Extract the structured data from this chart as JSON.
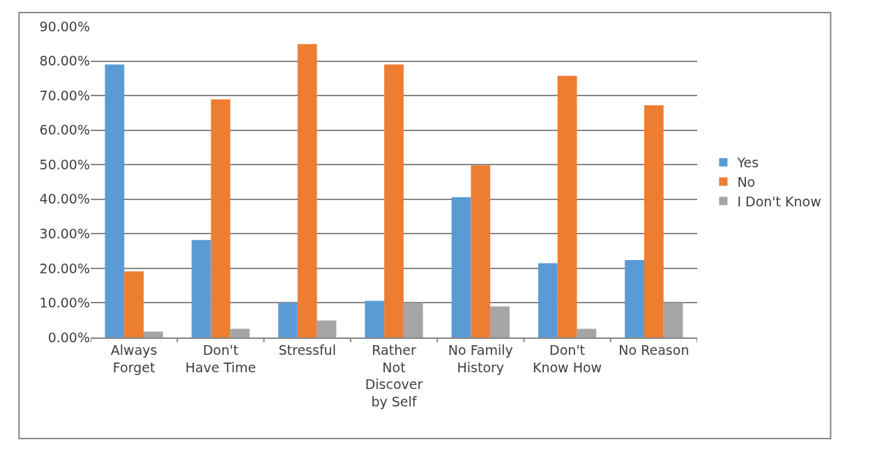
{
  "chart_data": {
    "type": "bar",
    "categories": [
      "Always Forget",
      "Don't Have Time",
      "Stressful",
      "Rather Not Discover by Self",
      "No Family History",
      "Don't Know How",
      "No Reason"
    ],
    "series": [
      {
        "name": "Yes",
        "color": "#5b9bd5",
        "values": [
          79.0,
          28.2,
          10.0,
          10.6,
          40.6,
          21.5,
          22.4
        ]
      },
      {
        "name": "No",
        "color": "#ed7d31",
        "values": [
          19.1,
          68.9,
          84.9,
          79.0,
          49.8,
          75.7,
          67.2
        ]
      },
      {
        "name": "I Don't Know",
        "color": "#a5a5a5",
        "values": [
          1.7,
          2.5,
          4.9,
          10.0,
          9.0,
          2.5,
          10.0
        ]
      }
    ],
    "ylim": [
      0,
      90
    ],
    "yticks": [
      {
        "value": 0,
        "label": "0.00%"
      },
      {
        "value": 10,
        "label": "10.00%"
      },
      {
        "value": 20,
        "label": "20.00%"
      },
      {
        "value": 30,
        "label": "30.00%"
      },
      {
        "value": 40,
        "label": "40.00%"
      },
      {
        "value": 50,
        "label": "50.00%"
      },
      {
        "value": 60,
        "label": "60.00%"
      },
      {
        "value": 70,
        "label": "70.00%"
      },
      {
        "value": 80,
        "label": "80.00%"
      },
      {
        "value": 90,
        "label": "90.00%"
      }
    ],
    "grid": "y",
    "legend": "right"
  }
}
